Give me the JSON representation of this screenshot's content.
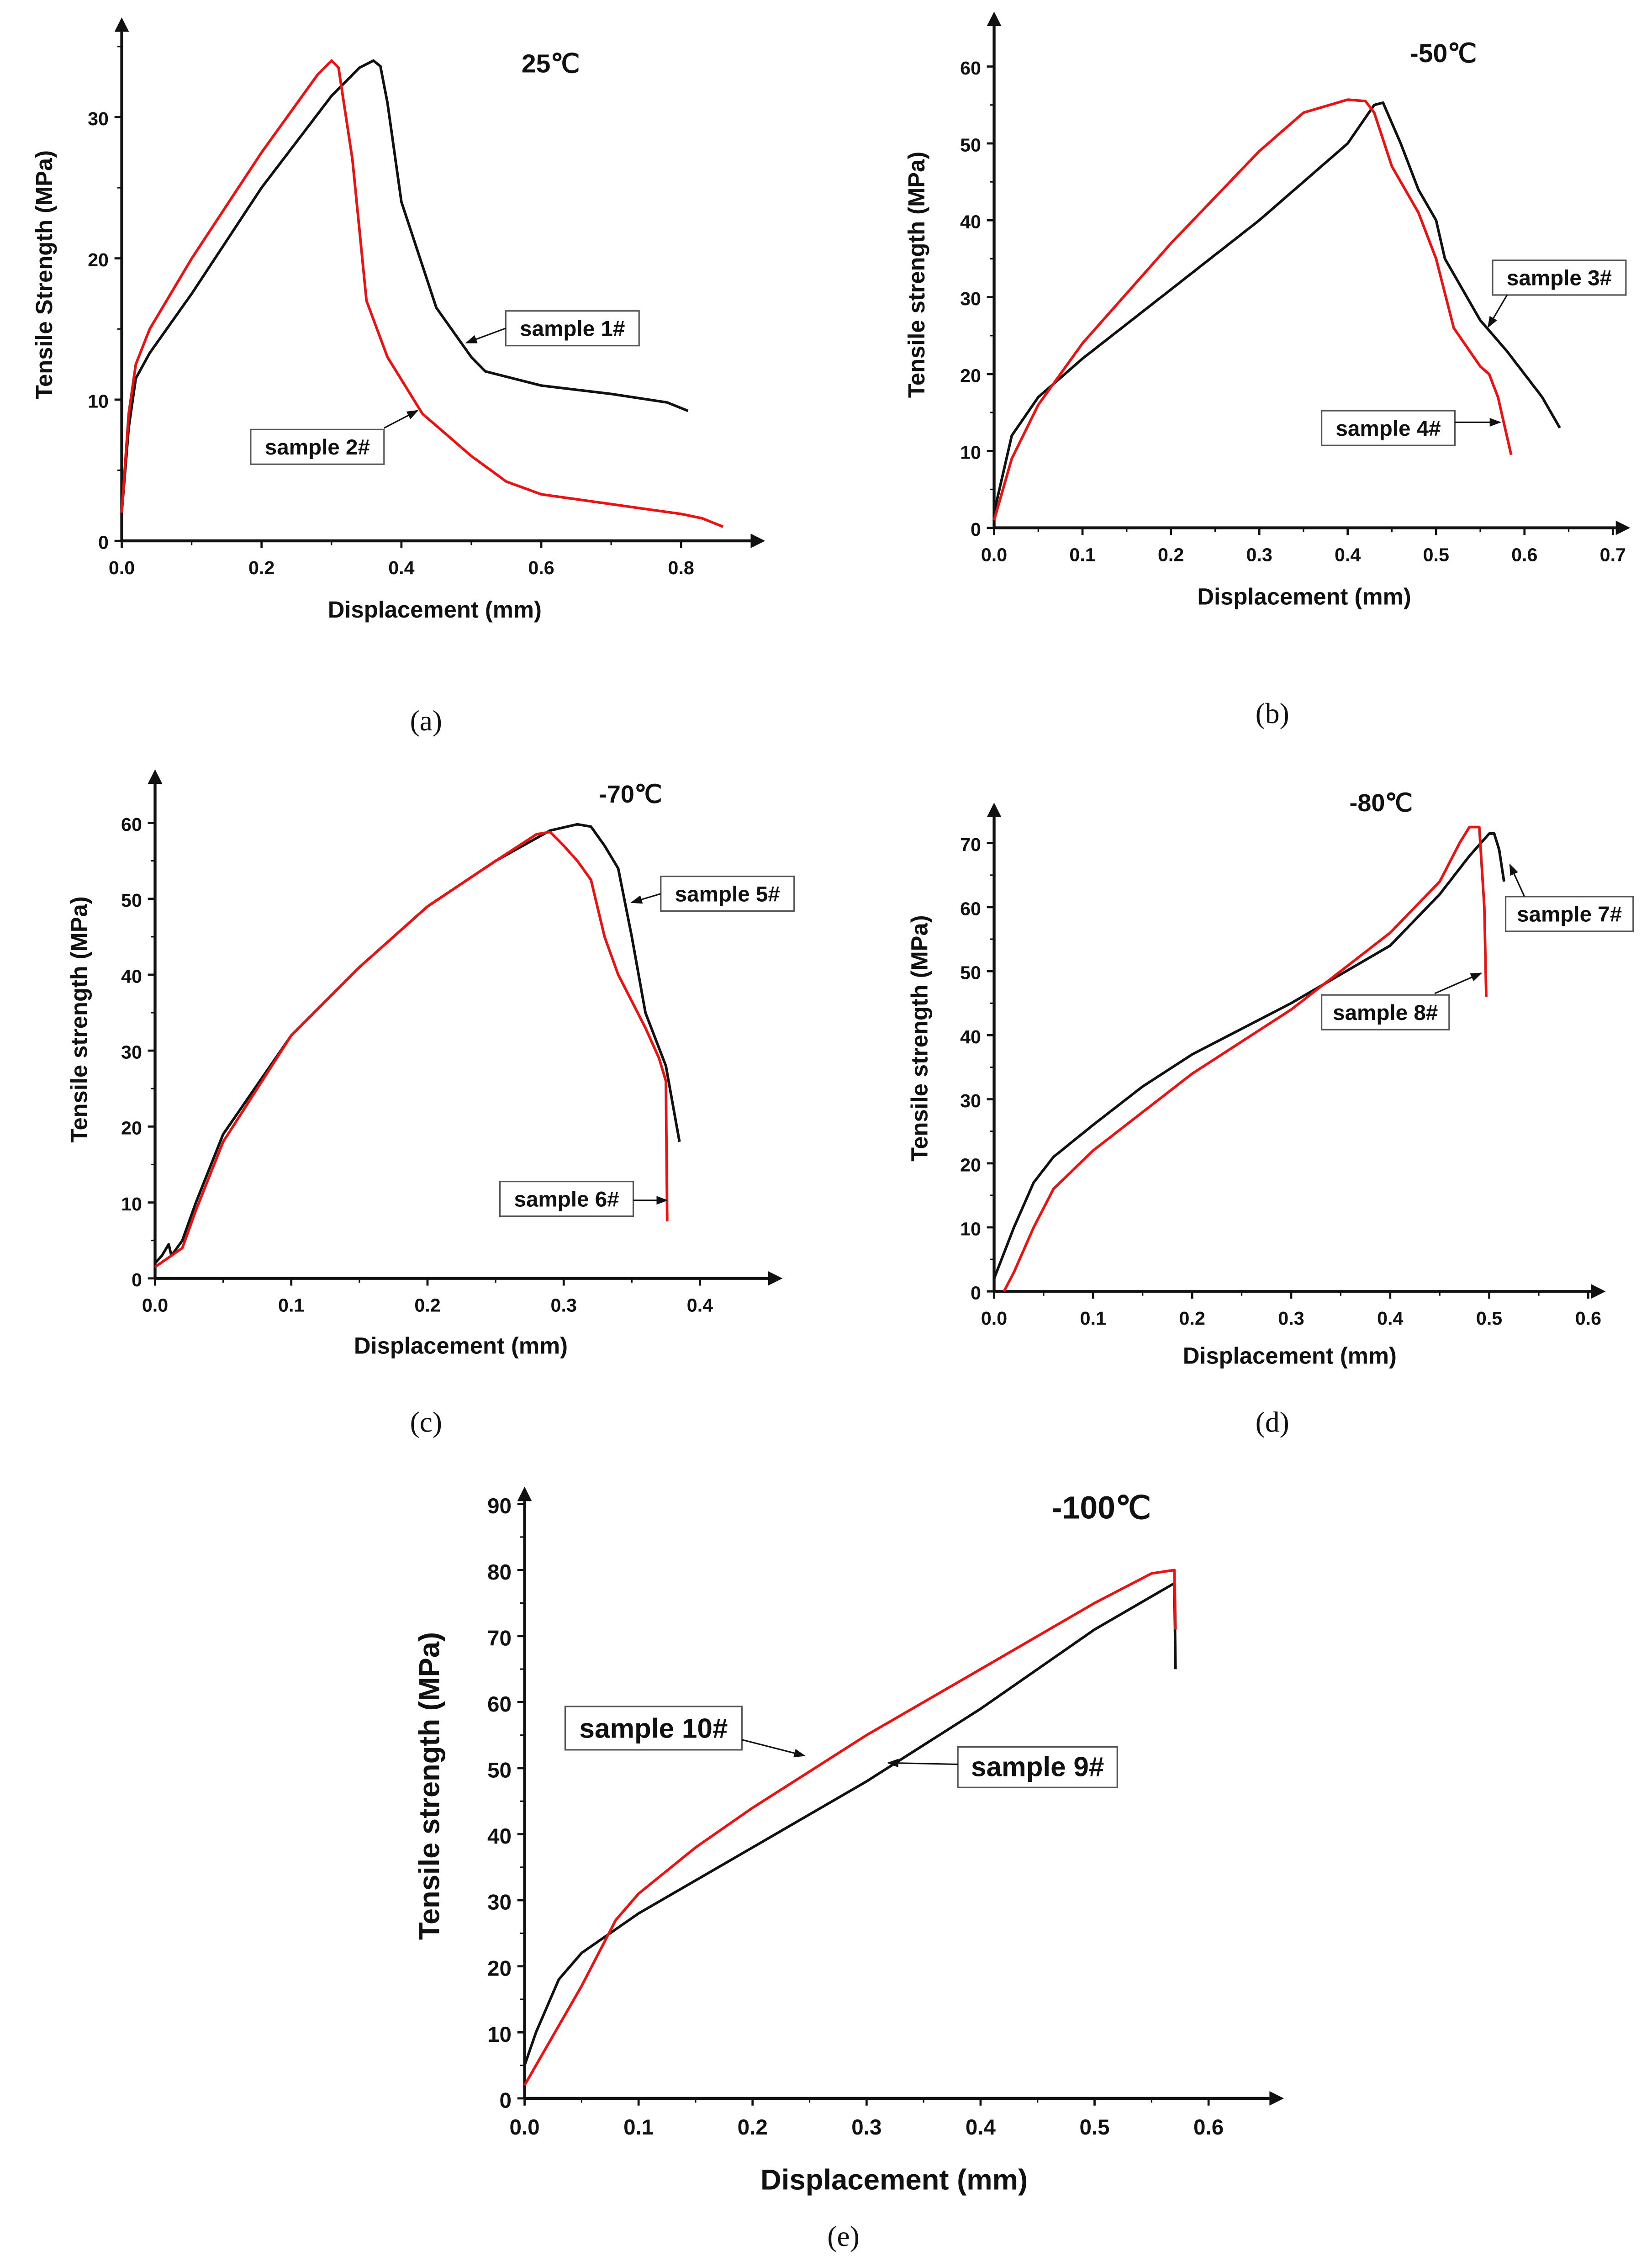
{
  "colors": {
    "sample_odd": "#111111",
    "sample_even": "#ee1111"
  },
  "chart_data": [
    {
      "type": "line",
      "panel": "a",
      "caption": "(a)",
      "title": "25℃",
      "xlabel": "Displacement (mm)",
      "ylabel": "Tensile Strength (MPa)",
      "xlim": [
        0,
        0.9
      ],
      "ylim": [
        0,
        35
      ],
      "xticks": [
        "0.0",
        "0.2",
        "0.4",
        "0.6",
        "0.8"
      ],
      "xtick_values": [
        0,
        0.2,
        0.4,
        0.6,
        0.8
      ],
      "yticks": [
        "0",
        "10",
        "20",
        "30"
      ],
      "ytick_values": [
        0,
        10,
        20,
        30
      ],
      "series": [
        {
          "name": "sample 1#",
          "color": "#111111",
          "points": [
            [
              0,
              2
            ],
            [
              0.01,
              8
            ],
            [
              0.02,
              11.5
            ],
            [
              0.04,
              13.3
            ],
            [
              0.1,
              17.5
            ],
            [
              0.2,
              25
            ],
            [
              0.3,
              31.5
            ],
            [
              0.34,
              33.5
            ],
            [
              0.36,
              34
            ],
            [
              0.37,
              33.6
            ],
            [
              0.38,
              31
            ],
            [
              0.4,
              24
            ],
            [
              0.45,
              16.5
            ],
            [
              0.5,
              13
            ],
            [
              0.52,
              12
            ],
            [
              0.6,
              11
            ],
            [
              0.7,
              10.4
            ],
            [
              0.78,
              9.8
            ],
            [
              0.81,
              9.2
            ]
          ]
        },
        {
          "name": "sample 2#",
          "color": "#ee1111",
          "points": [
            [
              0,
              2
            ],
            [
              0.01,
              9
            ],
            [
              0.02,
              12.5
            ],
            [
              0.04,
              15
            ],
            [
              0.1,
              20
            ],
            [
              0.2,
              27.5
            ],
            [
              0.28,
              33
            ],
            [
              0.3,
              34
            ],
            [
              0.31,
              33.5
            ],
            [
              0.33,
              27
            ],
            [
              0.35,
              17
            ],
            [
              0.38,
              13
            ],
            [
              0.43,
              9
            ],
            [
              0.5,
              6
            ],
            [
              0.55,
              4.2
            ],
            [
              0.6,
              3.3
            ],
            [
              0.7,
              2.6
            ],
            [
              0.8,
              1.9
            ],
            [
              0.83,
              1.6
            ],
            [
              0.86,
              1
            ]
          ]
        }
      ]
    },
    {
      "type": "line",
      "panel": "b",
      "caption": "(b)",
      "title": "-50℃",
      "xlabel": "Displacement (mm)",
      "ylabel": "Tensile strength (MPa)",
      "xlim": [
        0,
        0.7
      ],
      "ylim": [
        0,
        65
      ],
      "xticks": [
        "0.0",
        "0.1",
        "0.2",
        "0.3",
        "0.4",
        "0.5",
        "0.6",
        "0.7"
      ],
      "xtick_values": [
        0,
        0.1,
        0.2,
        0.3,
        0.4,
        0.5,
        0.6,
        0.7
      ],
      "yticks": [
        "0",
        "10",
        "20",
        "30",
        "40",
        "50",
        "60"
      ],
      "ytick_values": [
        0,
        10,
        20,
        30,
        40,
        50,
        60
      ],
      "series": [
        {
          "name": "sample 3#",
          "color": "#111111",
          "points": [
            [
              0,
              2
            ],
            [
              0.02,
              12
            ],
            [
              0.05,
              17
            ],
            [
              0.1,
              22
            ],
            [
              0.2,
              31
            ],
            [
              0.3,
              40
            ],
            [
              0.4,
              50
            ],
            [
              0.43,
              55
            ],
            [
              0.44,
              55.3
            ],
            [
              0.46,
              50
            ],
            [
              0.48,
              44
            ],
            [
              0.5,
              40
            ],
            [
              0.51,
              35
            ],
            [
              0.55,
              27
            ],
            [
              0.58,
              23
            ],
            [
              0.62,
              17
            ],
            [
              0.64,
              13
            ]
          ]
        },
        {
          "name": "sample 4#",
          "color": "#ee1111",
          "points": [
            [
              0,
              1
            ],
            [
              0.02,
              9
            ],
            [
              0.05,
              16
            ],
            [
              0.1,
              24
            ],
            [
              0.2,
              37
            ],
            [
              0.3,
              49
            ],
            [
              0.35,
              54
            ],
            [
              0.4,
              55.7
            ],
            [
              0.42,
              55.5
            ],
            [
              0.43,
              54
            ],
            [
              0.45,
              47
            ],
            [
              0.48,
              41
            ],
            [
              0.5,
              35
            ],
            [
              0.52,
              26
            ],
            [
              0.55,
              21
            ],
            [
              0.56,
              20
            ],
            [
              0.57,
              17
            ],
            [
              0.585,
              9.5
            ]
          ]
        }
      ]
    },
    {
      "type": "line",
      "panel": "c",
      "caption": "(c)",
      "title": "-70℃",
      "xlabel": "Displacement (mm)",
      "ylabel": "Tensile strength (MPa)",
      "xlim": [
        0,
        0.45
      ],
      "ylim": [
        0,
        65
      ],
      "xticks": [
        "0.0",
        "0.1",
        "0.2",
        "0.3",
        "0.4"
      ],
      "xtick_values": [
        0,
        0.1,
        0.2,
        0.3,
        0.4
      ],
      "yticks": [
        "0",
        "10",
        "20",
        "30",
        "40",
        "50",
        "60"
      ],
      "ytick_values": [
        0,
        10,
        20,
        30,
        40,
        50,
        60
      ],
      "series": [
        {
          "name": "sample 5#",
          "color": "#111111",
          "points": [
            [
              0,
              2
            ],
            [
              0.005,
              3
            ],
            [
              0.01,
              4.5
            ],
            [
              0.012,
              3
            ],
            [
              0.02,
              5
            ],
            [
              0.03,
              10
            ],
            [
              0.05,
              19
            ],
            [
              0.1,
              32
            ],
            [
              0.15,
              41
            ],
            [
              0.2,
              49
            ],
            [
              0.25,
              55
            ],
            [
              0.29,
              59
            ],
            [
              0.31,
              59.8
            ],
            [
              0.32,
              59.5
            ],
            [
              0.33,
              57
            ],
            [
              0.34,
              54
            ],
            [
              0.35,
              45
            ],
            [
              0.36,
              35
            ],
            [
              0.375,
              28
            ],
            [
              0.38,
              23
            ],
            [
              0.385,
              18
            ]
          ]
        },
        {
          "name": "sample 6#",
          "color": "#ee1111",
          "points": [
            [
              0,
              1.5
            ],
            [
              0.02,
              4
            ],
            [
              0.03,
              9
            ],
            [
              0.05,
              18
            ],
            [
              0.1,
              32
            ],
            [
              0.15,
              41
            ],
            [
              0.2,
              49
            ],
            [
              0.25,
              55
            ],
            [
              0.28,
              58.5
            ],
            [
              0.29,
              58.8
            ],
            [
              0.3,
              57
            ],
            [
              0.31,
              55
            ],
            [
              0.32,
              52.5
            ],
            [
              0.33,
              45
            ],
            [
              0.34,
              40
            ],
            [
              0.36,
              33
            ],
            [
              0.37,
              29
            ],
            [
              0.375,
              26
            ],
            [
              0.376,
              7.5
            ]
          ]
        }
      ]
    },
    {
      "type": "line",
      "panel": "d",
      "caption": "(d)",
      "title": "-80℃",
      "xlabel": "Displacement (mm)",
      "ylabel": "Tensile strength (MPa)",
      "xlim": [
        0,
        0.6
      ],
      "ylim": [
        0,
        75
      ],
      "xticks": [
        "0.0",
        "0.1",
        "0.2",
        "0.3",
        "0.4",
        "0.5",
        "0.6"
      ],
      "xtick_values": [
        0,
        0.1,
        0.2,
        0.3,
        0.4,
        0.5,
        0.6
      ],
      "yticks": [
        "0",
        "10",
        "20",
        "30",
        "40",
        "50",
        "60",
        "70"
      ],
      "ytick_values": [
        0,
        10,
        20,
        30,
        40,
        50,
        60,
        70
      ],
      "series": [
        {
          "name": "sample 7#",
          "color": "#111111",
          "points": [
            [
              0,
              2
            ],
            [
              0.02,
              10
            ],
            [
              0.04,
              17
            ],
            [
              0.06,
              21
            ],
            [
              0.1,
              26
            ],
            [
              0.15,
              32
            ],
            [
              0.2,
              37
            ],
            [
              0.3,
              45
            ],
            [
              0.4,
              54
            ],
            [
              0.45,
              62
            ],
            [
              0.48,
              68
            ],
            [
              0.5,
              71.5
            ],
            [
              0.505,
              71.5
            ],
            [
              0.51,
              69
            ],
            [
              0.515,
              64
            ]
          ]
        },
        {
          "name": "sample 8#",
          "color": "#ee1111",
          "points": [
            [
              0.01,
              0
            ],
            [
              0.02,
              3
            ],
            [
              0.04,
              10
            ],
            [
              0.06,
              16
            ],
            [
              0.1,
              22
            ],
            [
              0.15,
              28
            ],
            [
              0.2,
              34
            ],
            [
              0.3,
              44
            ],
            [
              0.4,
              56
            ],
            [
              0.45,
              64
            ],
            [
              0.47,
              70
            ],
            [
              0.48,
              72.5
            ],
            [
              0.49,
              72.5
            ],
            [
              0.495,
              60
            ],
            [
              0.497,
              46
            ]
          ]
        }
      ]
    },
    {
      "type": "line",
      "panel": "e",
      "caption": "(e)",
      "title": "-100℃",
      "xlabel": "Displacement (mm)",
      "ylabel": "Tensile strength (MPa)",
      "xlim": [
        0,
        0.65
      ],
      "ylim": [
        0,
        90
      ],
      "xticks": [
        "0.0",
        "0.1",
        "0.2",
        "0.3",
        "0.4",
        "0.5",
        "0.6"
      ],
      "xtick_values": [
        0,
        0.1,
        0.2,
        0.3,
        0.4,
        0.5,
        0.6
      ],
      "yticks": [
        "0",
        "10",
        "20",
        "30",
        "40",
        "50",
        "60",
        "70",
        "80",
        "90"
      ],
      "ytick_values": [
        0,
        10,
        20,
        30,
        40,
        50,
        60,
        70,
        80,
        90
      ],
      "series": [
        {
          "name": "sample 9#",
          "color": "#111111",
          "points": [
            [
              0,
              5
            ],
            [
              0.01,
              10
            ],
            [
              0.03,
              18
            ],
            [
              0.05,
              22
            ],
            [
              0.1,
              28
            ],
            [
              0.2,
              38
            ],
            [
              0.3,
              48
            ],
            [
              0.4,
              59
            ],
            [
              0.5,
              71
            ],
            [
              0.55,
              76
            ],
            [
              0.57,
              78
            ],
            [
              0.571,
              65
            ]
          ]
        },
        {
          "name": "sample 10#",
          "color": "#ee1111",
          "points": [
            [
              0,
              2
            ],
            [
              0.02,
              8
            ],
            [
              0.05,
              17
            ],
            [
              0.08,
              27
            ],
            [
              0.1,
              31
            ],
            [
              0.15,
              38
            ],
            [
              0.2,
              44
            ],
            [
              0.3,
              55
            ],
            [
              0.4,
              65
            ],
            [
              0.5,
              75
            ],
            [
              0.55,
              79.5
            ],
            [
              0.57,
              80
            ],
            [
              0.571,
              71
            ]
          ]
        }
      ]
    }
  ]
}
